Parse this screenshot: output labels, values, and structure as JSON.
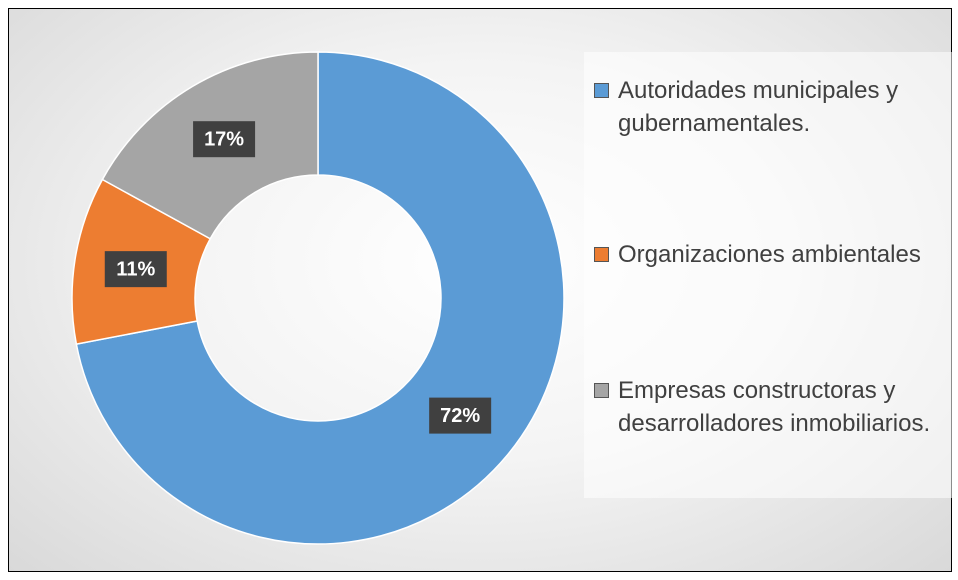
{
  "chart_data": {
    "type": "donut",
    "categories": [
      "Autoridades municipales y gubernamentales.",
      "Organizaciones ambientales",
      "Empresas constructoras y desarrolladores inmobiliarios."
    ],
    "values": [
      72,
      11,
      17
    ],
    "value_labels": [
      "72%",
      "11%",
      "17%"
    ],
    "colors": [
      "#5b9bd5",
      "#ed7d31",
      "#a5a5a5"
    ],
    "legend": "right"
  }
}
